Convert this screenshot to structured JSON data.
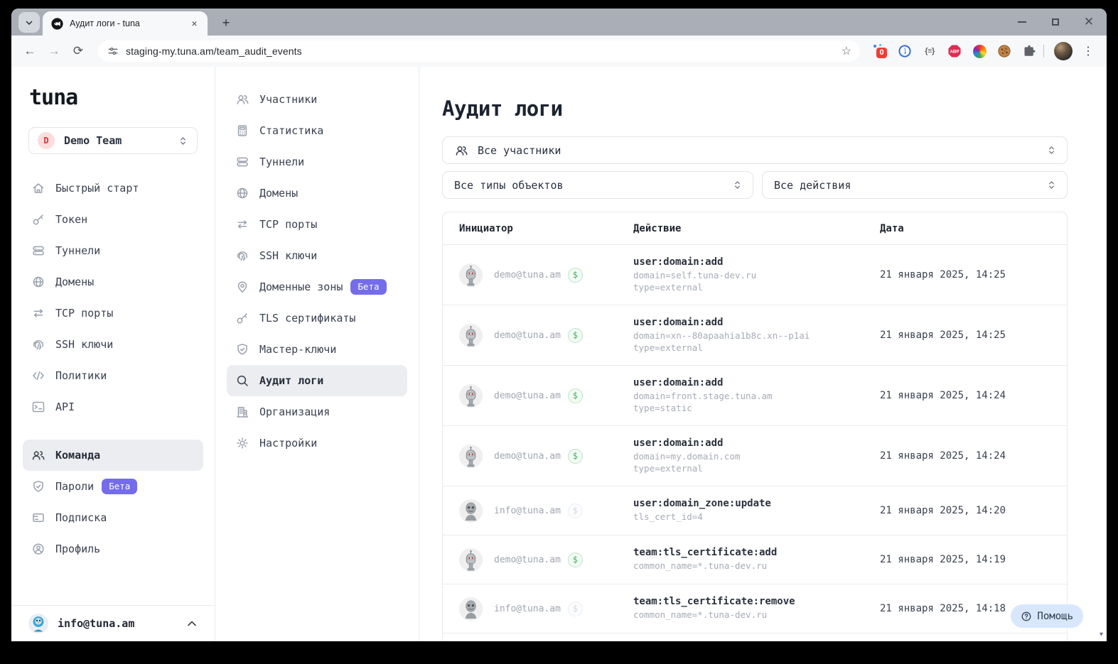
{
  "colors": {
    "beta_badge": "#746ceb",
    "paid_badge_green": "#41b45f",
    "help_button_bg": "#d9e7fd",
    "selected_item_bg": "#ebedf0",
    "titlebar_gray": "#a9aeb7"
  },
  "browser": {
    "tab_title": "Аудит логи - tuna",
    "url": "staging-my.tuna.am/team_audit_events",
    "extensions_badge_count": "0",
    "icon_glyphs": {
      "back": "←",
      "forward": "→",
      "reload": "⟳",
      "star": "☆",
      "menu": "⋮",
      "new_tab": "+",
      "close_tab": "×",
      "shortcuts": "{≡}",
      "scroll_down": "▾"
    }
  },
  "sidebar": {
    "logo": "tuna",
    "team_selector": {
      "initial": "D",
      "name": "Demo Team"
    },
    "items": [
      {
        "label": "Быстрый старт",
        "icon": "home"
      },
      {
        "label": "Токен",
        "icon": "key"
      },
      {
        "label": "Туннели",
        "icon": "server"
      },
      {
        "label": "Домены",
        "icon": "globe"
      },
      {
        "label": "TCP порты",
        "icon": "arrows"
      },
      {
        "label": "SSH ключи",
        "icon": "fingerprint"
      },
      {
        "label": "Политики",
        "icon": "code"
      },
      {
        "label": "API",
        "icon": "terminal"
      }
    ],
    "items_bottom": [
      {
        "label": "Команда",
        "icon": "users",
        "selected": true
      },
      {
        "label": "Пароли",
        "icon": "shield",
        "badge": "Бета"
      },
      {
        "label": "Подписка",
        "icon": "card"
      },
      {
        "label": "Профиль",
        "icon": "user-circle"
      }
    ],
    "user_email": "info@tuna.am"
  },
  "team_menu": {
    "items": [
      {
        "label": "Участники",
        "icon": "users2"
      },
      {
        "label": "Статистика",
        "icon": "calculator"
      },
      {
        "label": "Туннели",
        "icon": "server"
      },
      {
        "label": "Домены",
        "icon": "globe"
      },
      {
        "label": "TCP порты",
        "icon": "arrows"
      },
      {
        "label": "SSH ключи",
        "icon": "fingerprint"
      },
      {
        "label": "Доменные зоны",
        "icon": "pin",
        "badge": "Бета"
      },
      {
        "label": "TLS сертификаты",
        "icon": "key"
      },
      {
        "label": "Мастер-ключи",
        "icon": "shield"
      },
      {
        "label": "Аудит логи",
        "icon": "search",
        "selected": true
      },
      {
        "label": "Организация",
        "icon": "building"
      },
      {
        "label": "Настройки",
        "icon": "gear"
      }
    ]
  },
  "main": {
    "title": "Аудит логи",
    "filters": {
      "participants": "Все участники",
      "object_types": "Все типы объектов",
      "actions": "Все действия"
    },
    "table": {
      "headers": [
        "Инициатор",
        "Действие",
        "Дата"
      ],
      "paid_symbol": "$",
      "rows": [
        {
          "email": "demo@tuna.am",
          "avatar": "robot",
          "paid": true,
          "action": "user:domain:add",
          "details": [
            "domain=self.tuna-dev.ru",
            "type=external"
          ],
          "date": "21 января 2025, 14:25"
        },
        {
          "email": "demo@tuna.am",
          "avatar": "robot",
          "paid": true,
          "action": "user:domain:add",
          "details": [
            "domain=xn--80apaahia1b8c.xn--p1ai",
            "type=external"
          ],
          "date": "21 января 2025, 14:25"
        },
        {
          "email": "demo@tuna.am",
          "avatar": "robot",
          "paid": true,
          "action": "user:domain:add",
          "details": [
            "domain=front.stage.tuna.am",
            "type=static"
          ],
          "date": "21 января 2025, 14:24"
        },
        {
          "email": "demo@tuna.am",
          "avatar": "robot",
          "paid": true,
          "action": "user:domain:add",
          "details": [
            "domain=my.domain.com",
            "type=external"
          ],
          "date": "21 января 2025, 14:24"
        },
        {
          "email": "info@tuna.am",
          "avatar": "alien",
          "paid": false,
          "action": "user:domain_zone:update",
          "details": [
            "tls_cert_id=4"
          ],
          "date": "21 января 2025, 14:20"
        },
        {
          "email": "demo@tuna.am",
          "avatar": "robot",
          "paid": true,
          "action": "team:tls_certificate:add",
          "details": [
            "common_name=*.tuna-dev.ru"
          ],
          "date": "21 января 2025, 14:19"
        },
        {
          "email": "info@tuna.am",
          "avatar": "alien",
          "paid": false,
          "action": "team:tls_certificate:remove",
          "details": [
            "common_name=*.tuna-dev.ru"
          ],
          "date": "21 января 2025, 14:18"
        }
      ]
    },
    "help_label": "Помощь"
  }
}
